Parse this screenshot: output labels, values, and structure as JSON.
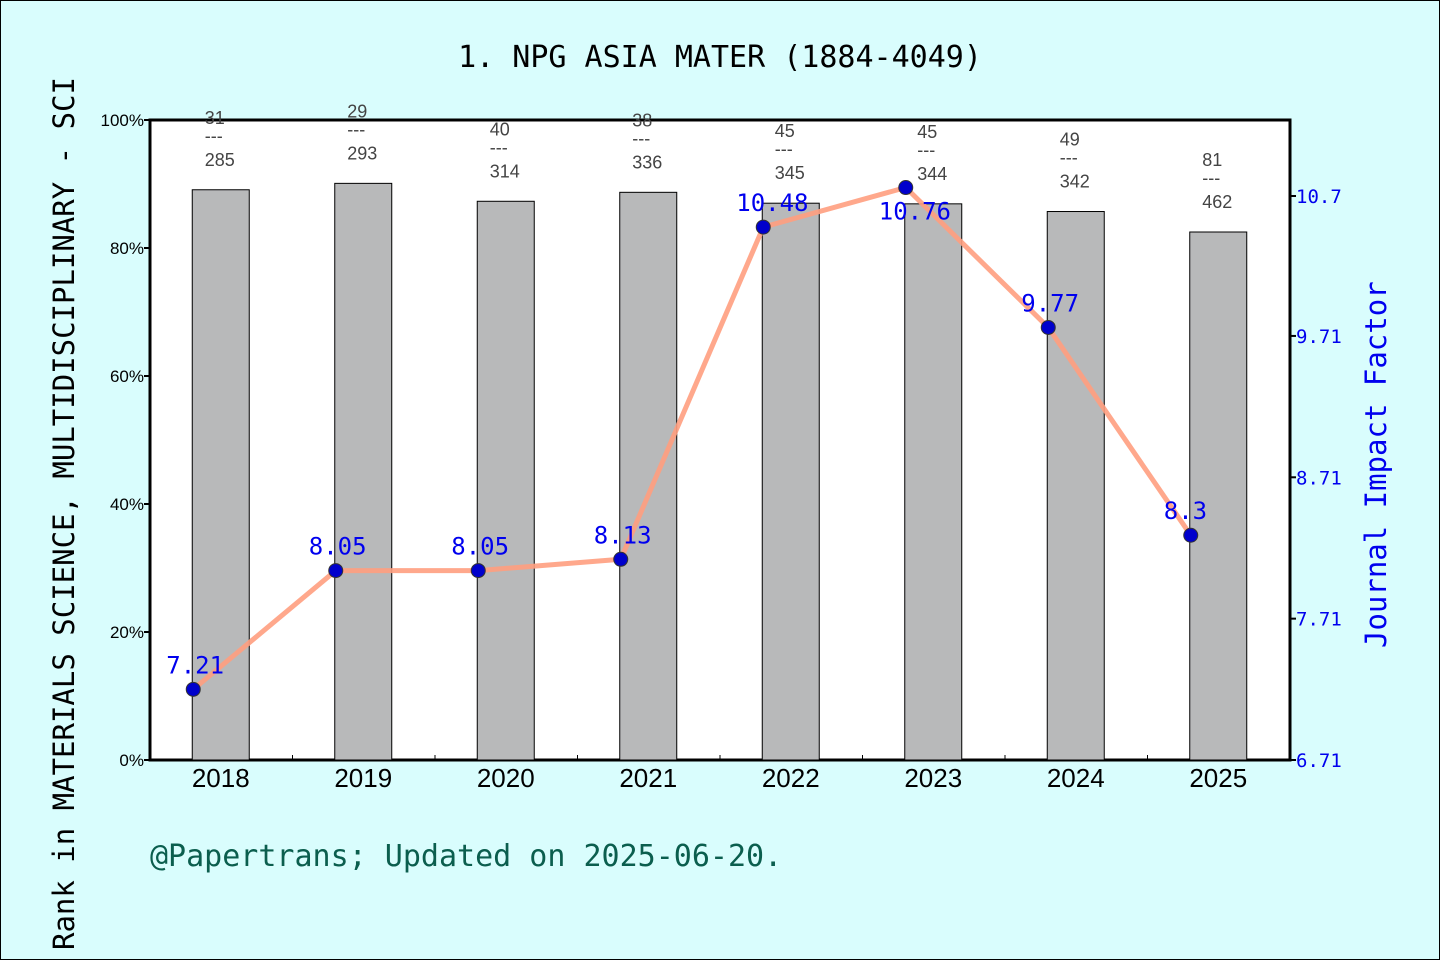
{
  "chart_data": {
    "type": "bar+line",
    "title": "1. NPG ASIA MATER (1884-4049)",
    "ylabel": "Rank in MATERIALS SCIENCE, MULTIDISCIPLINARY - SCI",
    "y2label": "Journal Impact Factor",
    "categories": [
      "2018",
      "2019",
      "2020",
      "2021",
      "2022",
      "2023",
      "2024",
      "2025"
    ],
    "ylim": [
      0,
      100
    ],
    "yticks": [
      "0%",
      "20%",
      "40%",
      "60%",
      "80%",
      "100%"
    ],
    "y2lim": [
      6.71,
      10.7
    ],
    "y2ticks": [
      "6.71",
      "7.71",
      "8.71",
      "9.71",
      "10.7"
    ],
    "rank": [
      31,
      29,
      40,
      38,
      45,
      45,
      49,
      81
    ],
    "total": [
      285,
      293,
      314,
      336,
      345,
      344,
      342,
      462
    ],
    "percentile": [
      89.1,
      90.1,
      87.3,
      88.7,
      87.0,
      86.9,
      85.7,
      82.5
    ],
    "impact_factor": [
      "7.21",
      "8.05",
      "8.05",
      "8.13",
      "10.48",
      "10.76",
      "9.77",
      "8.3"
    ],
    "colors": {
      "bar": "#b8b9ba",
      "line": "#ff9f7f",
      "point": "#0000cc",
      "if_text": "#0000ee",
      "footer": "#0b5e4e"
    },
    "grid": false,
    "footer": "@Papertrans; Updated on 2025-06-20."
  }
}
